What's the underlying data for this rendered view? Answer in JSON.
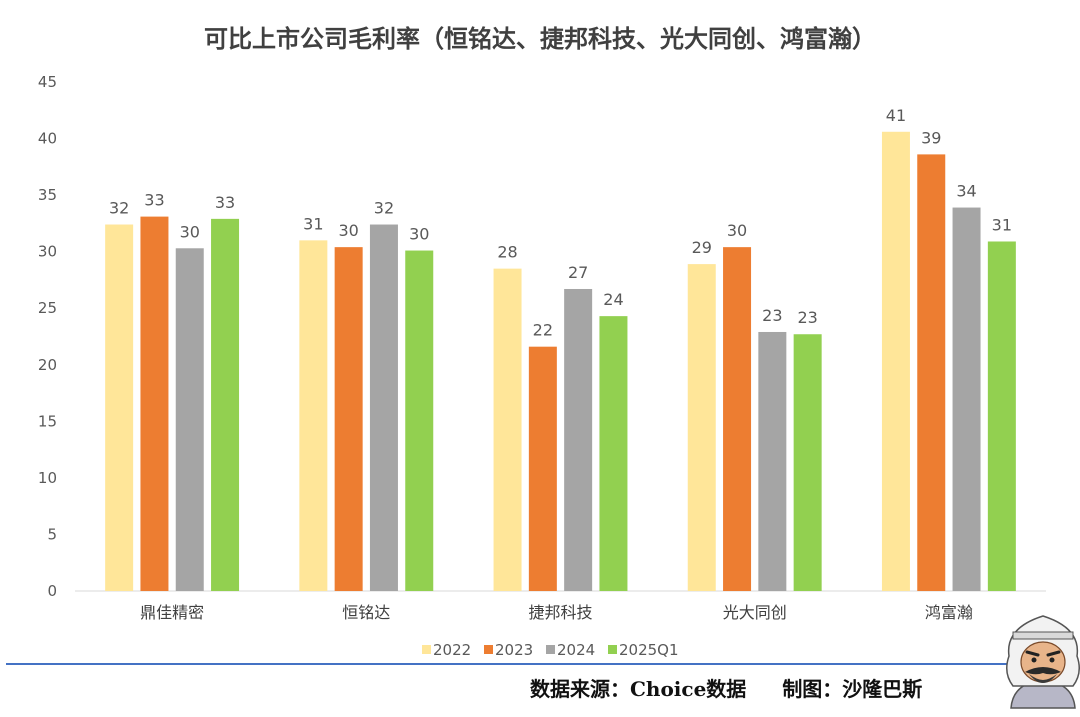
{
  "chart_data": {
    "type": "bar",
    "title": "可比上市公司毛利率（恒铭达、捷邦科技、光大同创、鸿富瀚）",
    "categories": [
      "鼎佳精密",
      "恒铭达",
      "捷邦科技",
      "光大同创",
      "鸿富瀚"
    ],
    "series": [
      {
        "name": "2022",
        "color": "#FFE699",
        "values": [
          32.4,
          31.0,
          28.5,
          28.9,
          40.6
        ],
        "labels": [
          "32",
          "31",
          "28",
          "29",
          "41"
        ]
      },
      {
        "name": "2023",
        "color": "#ED7D31",
        "values": [
          33.1,
          30.4,
          21.6,
          30.4,
          38.6
        ],
        "labels": [
          "33",
          "30",
          "22",
          "30",
          "39"
        ]
      },
      {
        "name": "2024",
        "color": "#A5A5A5",
        "values": [
          30.3,
          32.4,
          26.7,
          22.9,
          33.9
        ],
        "labels": [
          "30",
          "32",
          "27",
          "23",
          "34"
        ]
      },
      {
        "name": "2025Q1",
        "color": "#92D050",
        "values": [
          32.9,
          30.1,
          24.3,
          22.7,
          30.9
        ],
        "labels": [
          "33",
          "30",
          "24",
          "23",
          "31"
        ]
      }
    ],
    "ylim": [
      0,
      45
    ],
    "yticks": [
      0,
      5,
      10,
      15,
      20,
      25,
      30,
      35,
      40,
      45
    ],
    "grid": false,
    "legend": "bottom-center"
  },
  "footer": {
    "source": "数据来源：Choice数据",
    "author": "制图：沙隆巴斯"
  },
  "icons": {
    "mascot": "cartoon-man-headscarf-icon"
  }
}
